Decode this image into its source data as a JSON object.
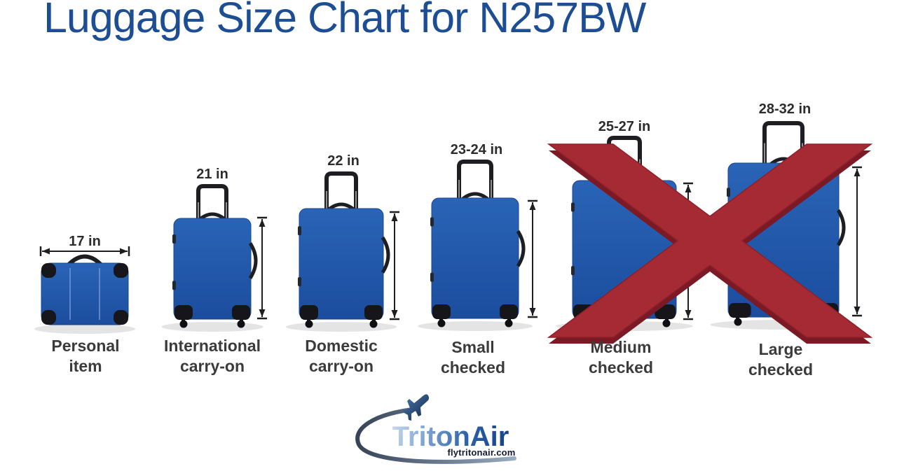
{
  "title": "Luggage Size Chart for N257BW",
  "bags": [
    {
      "id": "personal-item",
      "name": "Personal item",
      "line1": "Personal",
      "line2": "item",
      "size_label": "17 in",
      "allowed": true
    },
    {
      "id": "international-carry-on",
      "name": "International carry-on",
      "line1": "International",
      "line2": "carry-on",
      "size_label": "21 in",
      "allowed": true
    },
    {
      "id": "domestic-carry-on",
      "name": "Domestic carry-on",
      "line1": "Domestic",
      "line2": "carry-on",
      "size_label": "22 in",
      "allowed": true
    },
    {
      "id": "small-checked",
      "name": "Small checked",
      "line1": "Small",
      "line2": "checked",
      "size_label": "23-24 in",
      "allowed": true
    },
    {
      "id": "medium-checked",
      "name": "Medium checked",
      "line1": "Medium",
      "line2": "checked",
      "size_label": "25-27 in",
      "allowed": false
    },
    {
      "id": "large-checked",
      "name": "Large checked",
      "line1": "Large",
      "line2": "checked",
      "size_label": "28-32 in",
      "allowed": false
    }
  ],
  "not_allowed_marker": {
    "icon": "red-x-icon",
    "covers": [
      "Medium checked",
      "Large checked"
    ]
  },
  "logo": {
    "brand": "TritonAir",
    "website": "flytritonair.com",
    "icon": "airplane-icon"
  },
  "icons": [
    "airplane-icon",
    "red-x-icon",
    "measurement-arrow",
    "suitcase-graphic"
  ],
  "colors": {
    "title_blue": "#1d4e94",
    "suitcase_blue": "#1e54a6",
    "prohibited_red": "#a52a34",
    "prohibited_red_shadow": "#7b1a24",
    "label_gray": "#3b3b3b",
    "logo_blue": "#2a60a8"
  },
  "chart_data": {
    "type": "table",
    "title": "Luggage Size Chart for N257BW",
    "categories": [
      "Personal item",
      "International carry-on",
      "Domestic carry-on",
      "Small checked",
      "Medium checked",
      "Large checked"
    ],
    "sizes_inches": [
      "17",
      "21",
      "22",
      "23-24",
      "25-27",
      "28-32"
    ],
    "size_labels": [
      "17 in",
      "21 in",
      "22 in",
      "23-24 in",
      "25-27 in",
      "28-32 in"
    ],
    "allowed": [
      true,
      true,
      true,
      true,
      false,
      false
    ],
    "annotation": "red X crosses out Medium checked and Large checked"
  }
}
